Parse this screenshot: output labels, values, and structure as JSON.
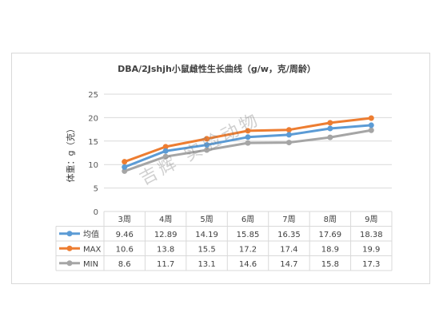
{
  "chart_data": {
    "type": "line",
    "title": "DBA/2Jshjh小鼠雌性生长曲线（g/w，克/周龄）",
    "ylabel": "体重：g（克）",
    "xlabel": "",
    "categories": [
      "3周",
      "4周",
      "5周",
      "6周",
      "7周",
      "8周",
      "9周"
    ],
    "ylim": [
      0,
      25
    ],
    "yticks": [
      "0",
      "5",
      "10",
      "15",
      "20",
      "25"
    ],
    "grid": true,
    "legend": "data-table",
    "series": [
      {
        "name": "均值",
        "color": "#5b9bd5",
        "values": [
          9.46,
          12.89,
          14.19,
          15.85,
          16.35,
          17.69,
          18.38
        ],
        "labels": [
          "9.46",
          "12.89",
          "14.19",
          "15.85",
          "16.35",
          "17.69",
          "18.38"
        ]
      },
      {
        "name": "MAX",
        "color": "#ed7d31",
        "values": [
          10.6,
          13.8,
          15.5,
          17.2,
          17.4,
          18.9,
          19.9
        ],
        "labels": [
          "10.6",
          "13.8",
          "15.5",
          "17.2",
          "17.4",
          "18.9",
          "19.9"
        ]
      },
      {
        "name": "MIN",
        "color": "#a5a5a5",
        "values": [
          8.6,
          11.7,
          13.1,
          14.6,
          14.7,
          15.8,
          17.3
        ],
        "labels": [
          "8.6",
          "11.7",
          "13.1",
          "14.6",
          "14.7",
          "15.8",
          "17.3"
        ]
      }
    ]
  },
  "watermark": "吉辉 实验动物"
}
